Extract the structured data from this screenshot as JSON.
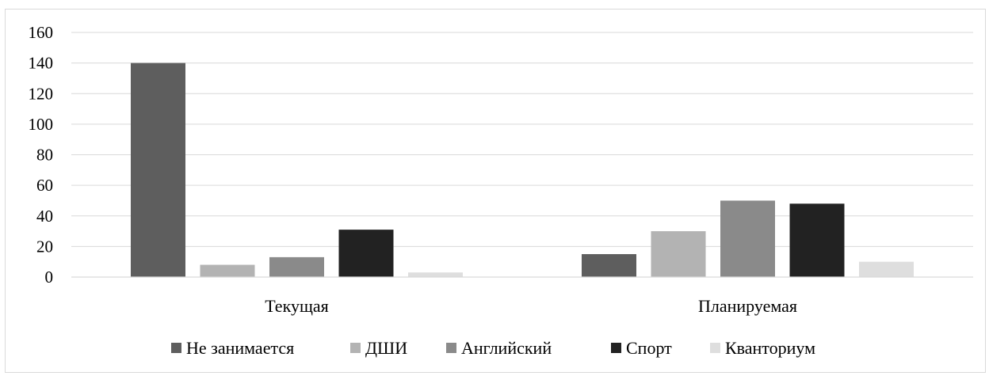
{
  "chart_data": {
    "type": "bar",
    "title": "",
    "xlabel": "",
    "ylabel": "",
    "categories": [
      "Текущая",
      "Планируемая"
    ],
    "series": [
      {
        "name": "Не занимается",
        "values": [
          140,
          15
        ],
        "color": "#5e5e5e"
      },
      {
        "name": "ДШИ",
        "values": [
          8,
          30
        ],
        "color": "#b3b3b3"
      },
      {
        "name": "Английский",
        "values": [
          13,
          50
        ],
        "color": "#8a8a8a"
      },
      {
        "name": "Спорт",
        "values": [
          31,
          48
        ],
        "color": "#222222"
      },
      {
        "name": "Кванториум",
        "values": [
          3,
          10
        ],
        "color": "#dedede"
      }
    ],
    "ylim": [
      0,
      160
    ],
    "yticks": [
      0,
      20,
      40,
      60,
      80,
      100,
      120,
      140,
      160
    ],
    "grid": true,
    "legend_position": "bottom"
  }
}
